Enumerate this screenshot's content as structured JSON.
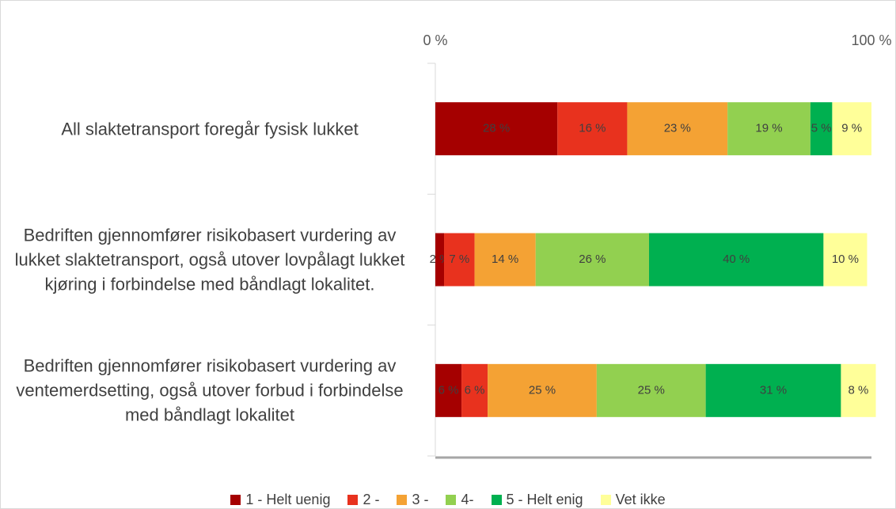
{
  "chart_data": {
    "type": "bar",
    "orientation": "horizontal",
    "stacked": true,
    "categories": [
      "All slaktetransport foregår fysisk lukket",
      "Bedriften gjennomfører risikobasert vurdering av lukket slaktetransport, også utover lovpålagt lukket kjøring i forbindelse med båndlagt lokalitet.",
      "Bedriften gjennomfører risikobasert vurdering av ventemerdsetting, også utover forbud i forbindelse med båndlagt lokalitet"
    ],
    "series": [
      {
        "name": "1 - Helt uenig",
        "color": "#a50000",
        "values": [
          28,
          2,
          6
        ],
        "value_labels": [
          "28 %",
          "2 %",
          "6 %"
        ]
      },
      {
        "name": "2 -",
        "color": "#e8321e",
        "values": [
          16,
          7,
          6
        ],
        "value_labels": [
          "16 %",
          "7 %",
          "6 %"
        ]
      },
      {
        "name": "3 -",
        "color": "#f4a234",
        "values": [
          23,
          14,
          25
        ],
        "value_labels": [
          "23 %",
          "14 %",
          "25 %"
        ]
      },
      {
        "name": "4-",
        "color": "#92d050",
        "values": [
          19,
          26,
          25
        ],
        "value_labels": [
          "19 %",
          "26 %",
          "25 %"
        ]
      },
      {
        "name": "5 - Helt enig",
        "color": "#00b050",
        "values": [
          5,
          40,
          31
        ],
        "value_labels": [
          "5 %",
          "40 %",
          "31 %"
        ]
      },
      {
        "name": "Vet ikke",
        "color": "#ffff99",
        "values": [
          9,
          10,
          8
        ],
        "value_labels": [
          "9 %",
          "10 %",
          "8 %"
        ]
      }
    ],
    "xlim": [
      0,
      100
    ],
    "xticks": [
      {
        "value": 0,
        "label": "0 %"
      },
      {
        "value": 100,
        "label": "100 %"
      }
    ],
    "legend": "bottom"
  }
}
